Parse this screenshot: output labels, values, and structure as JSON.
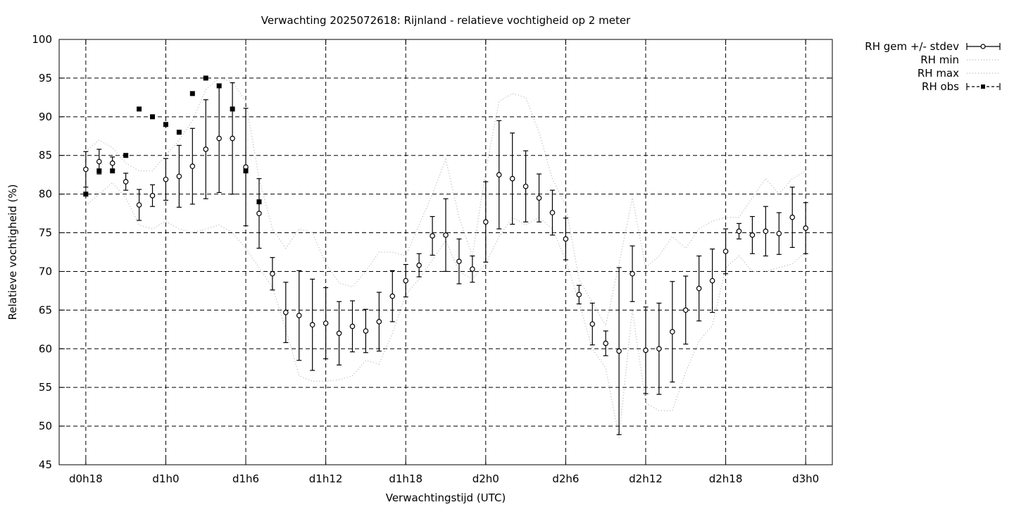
{
  "chart_data": {
    "type": "scatter",
    "title": "Verwachting 2025072618: Rijnland - relatieve vochtigheid op 2 meter",
    "xlabel": "Verwachtingstijd (UTC)",
    "ylabel": "Relatieve vochtigheid (%)",
    "ylim": [
      45,
      100
    ],
    "y_ticks": [
      45,
      50,
      55,
      60,
      65,
      70,
      75,
      80,
      85,
      90,
      95,
      100
    ],
    "xlim_hours": [
      -2,
      56
    ],
    "x_ticks": [
      {
        "hour": 0,
        "label": "d0h18"
      },
      {
        "hour": 6,
        "label": "d1h0"
      },
      {
        "hour": 12,
        "label": "d1h6"
      },
      {
        "hour": 18,
        "label": "d1h12"
      },
      {
        "hour": 24,
        "label": "d1h18"
      },
      {
        "hour": 30,
        "label": "d2h0"
      },
      {
        "hour": 36,
        "label": "d2h6"
      },
      {
        "hour": 42,
        "label": "d2h12"
      },
      {
        "hour": 48,
        "label": "d2h18"
      },
      {
        "hour": 54,
        "label": "d3h0"
      }
    ],
    "grid": true,
    "legend_position": "outside-right",
    "legend": [
      "RH gem +/- stdev",
      "RH min",
      "RH max",
      "RH obs"
    ],
    "x_hours": [
      0,
      1,
      2,
      3,
      4,
      5,
      6,
      7,
      8,
      9,
      10,
      11,
      12,
      13,
      14,
      15,
      16,
      17,
      18,
      19,
      20,
      21,
      22,
      23,
      24,
      25,
      26,
      27,
      28,
      29,
      30,
      31,
      32,
      33,
      34,
      35,
      36,
      37,
      38,
      39,
      40,
      41,
      42,
      43,
      44,
      45,
      46,
      47,
      48,
      49,
      50,
      51,
      52,
      53,
      54
    ],
    "series": [
      {
        "name": "RH gem +/- stdev",
        "mean": [
          83.2,
          84.2,
          84.0,
          81.6,
          78.6,
          79.8,
          81.9,
          82.3,
          83.6,
          85.8,
          87.2,
          87.2,
          83.5,
          77.5,
          69.7,
          64.7,
          64.3,
          63.1,
          63.3,
          62.0,
          62.9,
          62.3,
          63.5,
          66.8,
          68.8,
          70.8,
          74.6,
          74.7,
          71.3,
          70.3,
          76.4,
          82.5,
          82.0,
          81.0,
          79.5,
          77.6,
          74.2,
          67.0,
          63.2,
          60.7,
          59.7,
          69.7,
          59.8,
          60.0,
          62.2,
          65.0,
          67.8,
          68.8,
          72.6,
          75.2,
          74.7,
          75.2,
          74.9,
          77.0,
          75.6
        ],
        "stdev": [
          2.3,
          1.6,
          0.8,
          1.1,
          2.0,
          1.4,
          2.7,
          4.0,
          4.9,
          6.4,
          7.0,
          7.2,
          7.6,
          4.5,
          2.1,
          3.9,
          5.8,
          5.9,
          4.6,
          4.1,
          3.3,
          2.8,
          3.8,
          3.3,
          2.1,
          1.5,
          2.5,
          4.7,
          2.9,
          1.7,
          5.2,
          7.0,
          5.9,
          4.6,
          3.1,
          2.9,
          2.7,
          1.2,
          2.7,
          1.6,
          10.8,
          3.6,
          5.6,
          5.9,
          6.5,
          4.4,
          4.2,
          4.1,
          2.9,
          1.0,
          2.4,
          3.2,
          2.7,
          3.9,
          3.3
        ]
      },
      {
        "name": "RH min",
        "values": [
          78.5,
          80.0,
          81.5,
          79.5,
          76.0,
          75.5,
          76.5,
          75.5,
          75.0,
          75.5,
          76.0,
          75.0,
          73.0,
          70.5,
          68.0,
          62.5,
          56.5,
          55.8,
          55.8,
          56.0,
          56.5,
          58.5,
          58.0,
          62.0,
          67.0,
          69.0,
          71.5,
          74.0,
          70.0,
          69.0,
          71.0,
          74.5,
          77.0,
          76.0,
          77.0,
          75.5,
          71.5,
          66.0,
          60.0,
          57.5,
          48.5,
          65.0,
          53.0,
          52.0,
          52.0,
          57.0,
          61.0,
          63.0,
          70.5,
          72.0,
          70.0,
          70.0,
          70.5,
          71.0,
          72.5
        ]
      },
      {
        "name": "RH max",
        "values": [
          85.5,
          87.0,
          86.0,
          84.0,
          83.0,
          83.0,
          85.0,
          87.0,
          89.5,
          93.5,
          95.0,
          94.5,
          92.0,
          82.0,
          75.5,
          73.0,
          75.5,
          75.0,
          71.0,
          68.5,
          68.0,
          70.0,
          72.5,
          72.5,
          72.0,
          76.0,
          80.0,
          84.5,
          77.0,
          72.0,
          83.0,
          92.0,
          93.0,
          92.5,
          88.0,
          82.0,
          78.5,
          69.0,
          66.0,
          63.0,
          71.0,
          79.5,
          70.5,
          72.0,
          74.5,
          73.0,
          75.5,
          76.5,
          77.0,
          77.0,
          79.5,
          82.0,
          80.0,
          82.0,
          83.0
        ]
      },
      {
        "name": "RH obs",
        "hours": [
          0,
          1,
          2,
          3,
          4,
          5,
          6,
          7,
          8,
          9,
          10,
          11,
          12,
          13
        ],
        "values": [
          80,
          83,
          83,
          85,
          91,
          90,
          89,
          88,
          93,
          95,
          94,
          91,
          83,
          79
        ]
      }
    ]
  }
}
